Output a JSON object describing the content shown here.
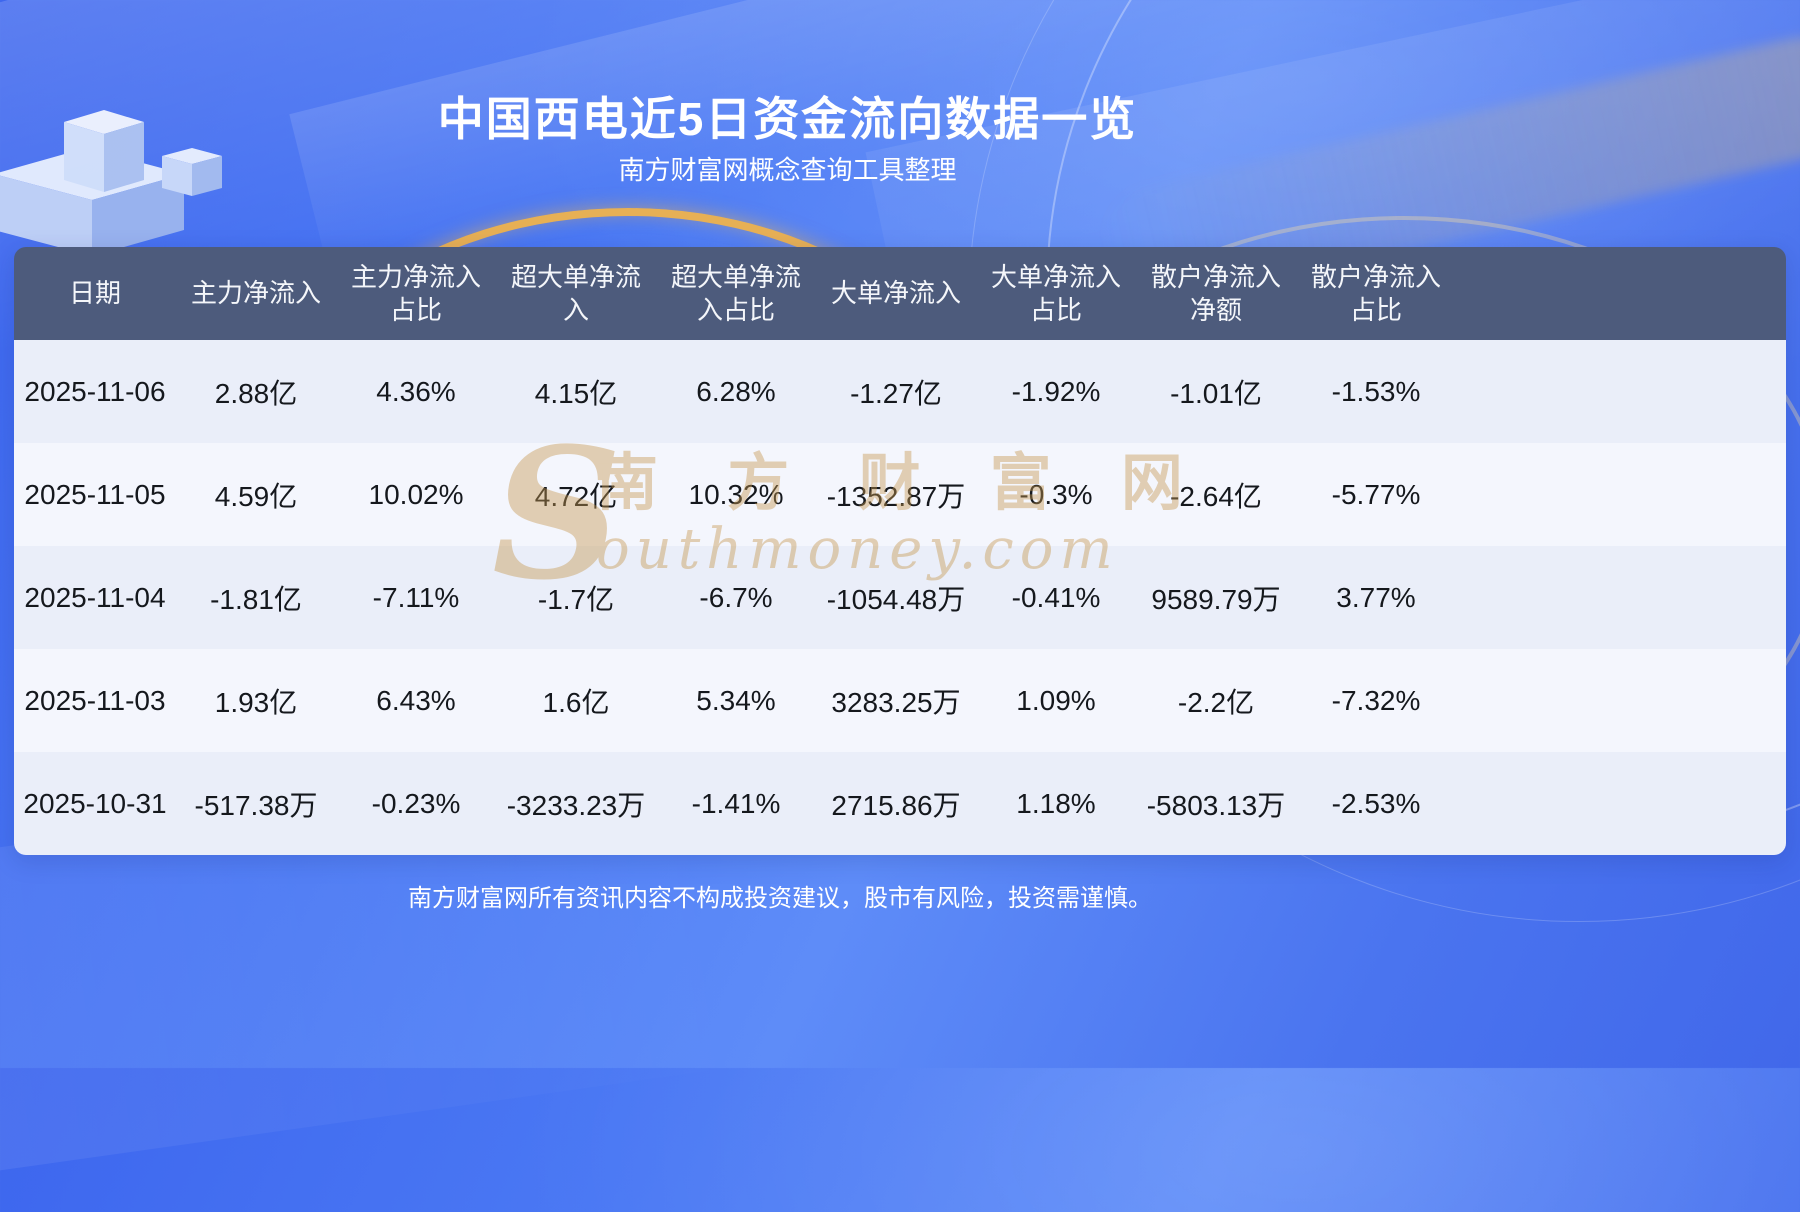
{
  "header": {
    "title": "中国西电近5日资金流向数据一览",
    "subtitle": "南方财富网概念查询工具整理"
  },
  "footer": {
    "disclaimer": "南方财富网所有资讯内容不构成投资建议，股市有风险，投资需谨慎。"
  },
  "watermark": {
    "initial": "S",
    "cn_text": "南 方 财 富 网",
    "en_text": "outhmoney.com"
  },
  "colors": {
    "header_bg": "#4d5b7c",
    "row_alt_a": "#eaeef9",
    "row_alt_b": "#f4f6fd",
    "background_blue": "#4b79f4",
    "accent_gold": "#f4b446"
  },
  "chart_data": {
    "type": "table",
    "title": "中国西电近5日资金流向数据一览",
    "columns": [
      "日期",
      "主力净流入",
      "主力净流入占比",
      "超大单净流入",
      "超大单净流入占比",
      "大单净流入",
      "大单净流入占比",
      "散户净流入净额",
      "散户净流入占比"
    ],
    "rows": [
      [
        "2025-11-06",
        "2.88亿",
        "4.36%",
        "4.15亿",
        "6.28%",
        "-1.27亿",
        "-1.92%",
        "-1.01亿",
        "-1.53%"
      ],
      [
        "2025-11-05",
        "4.59亿",
        "10.02%",
        "4.72亿",
        "10.32%",
        "-1352.87万",
        "-0.3%",
        "-2.64亿",
        "-5.77%"
      ],
      [
        "2025-11-04",
        "-1.81亿",
        "-7.11%",
        "-1.7亿",
        "-6.7%",
        "-1054.48万",
        "-0.41%",
        "9589.79万",
        "3.77%"
      ],
      [
        "2025-11-03",
        "1.93亿",
        "6.43%",
        "1.6亿",
        "5.34%",
        "3283.25万",
        "1.09%",
        "-2.2亿",
        "-7.32%"
      ],
      [
        "2025-10-31",
        "-517.38万",
        "-0.23%",
        "-3233.23万",
        "-1.41%",
        "2715.86万",
        "1.18%",
        "-5803.13万",
        "-2.53%"
      ]
    ]
  }
}
